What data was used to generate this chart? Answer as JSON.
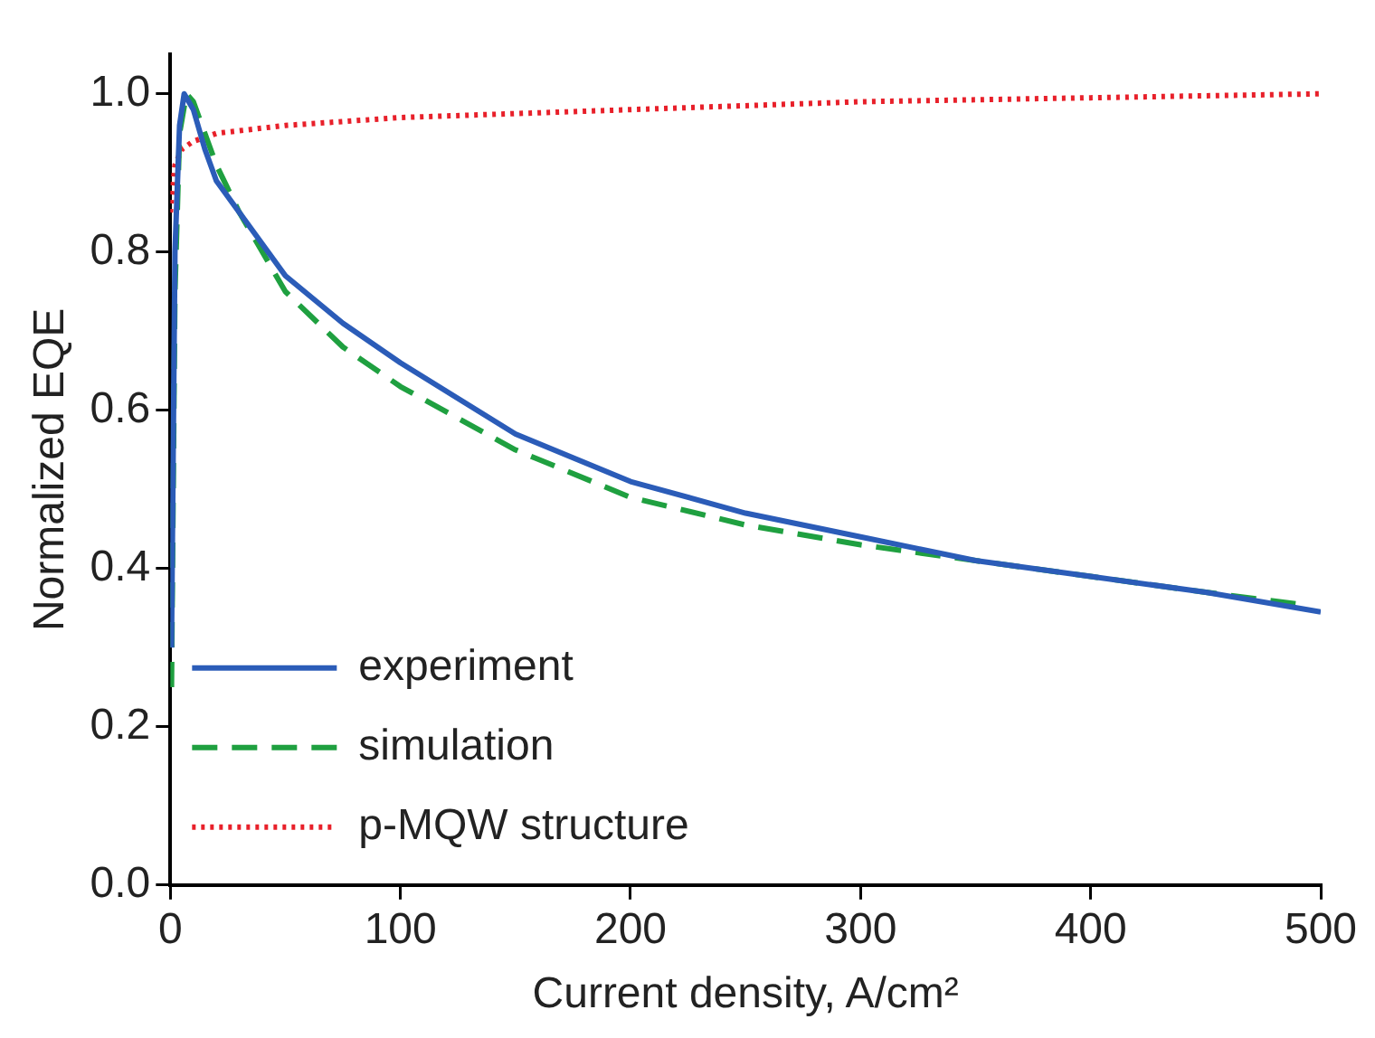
{
  "chart_data": {
    "type": "line",
    "xlabel": "Current density, A/cm²",
    "ylabel": "Normalized EQE",
    "xlim": [
      0,
      500
    ],
    "xticks": [
      0,
      100,
      200,
      300,
      400,
      500
    ],
    "ylim": [
      0,
      1.05
    ],
    "yticks": [
      {
        "value": 0,
        "label": "0.0"
      },
      {
        "value": 0.2,
        "label": "0.2"
      },
      {
        "value": 0.4,
        "label": "0.4"
      },
      {
        "value": 0.6,
        "label": "0.6"
      },
      {
        "value": 0.8,
        "label": "0.8"
      },
      {
        "value": 1,
        "label": "1.0"
      }
    ],
    "grid": false,
    "legend": "bottom left",
    "marker": "none",
    "series": [
      {
        "name": "experiment",
        "color": "#2b5cb8",
        "line_style": "solid",
        "x": [
          0.5,
          2,
          4,
          6,
          10,
          15,
          20,
          30,
          50,
          75,
          100,
          150,
          200,
          250,
          300,
          350,
          400,
          450,
          500
        ],
        "values": [
          0.3,
          0.8,
          0.96,
          1.0,
          0.98,
          0.93,
          0.89,
          0.85,
          0.77,
          0.71,
          0.66,
          0.57,
          0.51,
          0.47,
          0.44,
          0.41,
          0.39,
          0.37,
          0.345
        ]
      },
      {
        "name": "simulation",
        "color": "#1fa040",
        "line_style": "dashed",
        "x": [
          0.5,
          2,
          4,
          7,
          10,
          15,
          20,
          30,
          50,
          75,
          100,
          150,
          200,
          250,
          300,
          350,
          400,
          450,
          490
        ],
        "values": [
          0.25,
          0.75,
          0.95,
          1.0,
          0.99,
          0.95,
          0.91,
          0.85,
          0.75,
          0.68,
          0.63,
          0.55,
          0.49,
          0.455,
          0.43,
          0.41,
          0.39,
          0.37,
          0.355
        ]
      },
      {
        "name": "p-MQW structure",
        "color": "#e8202a",
        "line_style": "dotted",
        "x": [
          0,
          2,
          5,
          10,
          20,
          50,
          100,
          150,
          200,
          300,
          400,
          500
        ],
        "values": [
          0.85,
          0.91,
          0.93,
          0.94,
          0.95,
          0.96,
          0.97,
          0.975,
          0.98,
          0.99,
          0.995,
          1.0
        ]
      }
    ]
  }
}
